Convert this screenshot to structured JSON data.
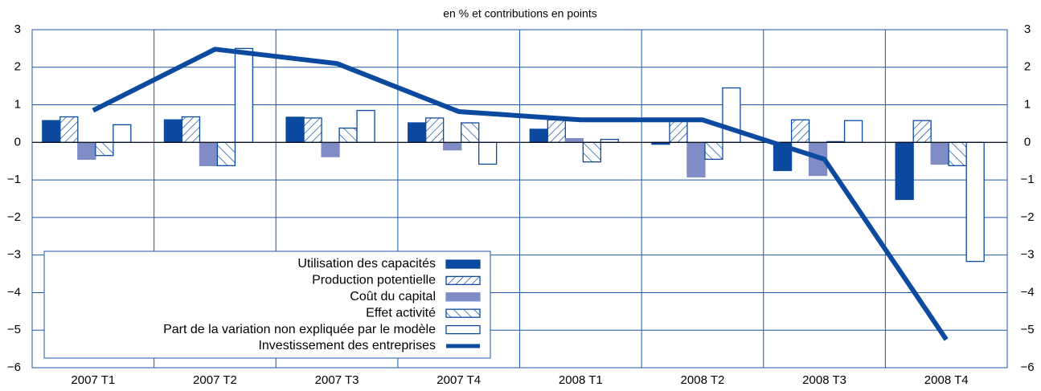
{
  "chart_data": {
    "type": "bar",
    "title": "en % et contributions en points",
    "categories": [
      "2007 T1",
      "2007 T2",
      "2007 T3",
      "2007 T4",
      "2008 T1",
      "2008 T2",
      "2008 T3",
      "2008 T4"
    ],
    "ylim": [
      -6,
      3
    ],
    "yticks": [
      {
        "value": -6,
        "label": "−6"
      },
      {
        "value": -5,
        "label": "−5"
      },
      {
        "value": -4,
        "label": "−4"
      },
      {
        "value": -3,
        "label": "−3"
      },
      {
        "value": -2,
        "label": "−2"
      },
      {
        "value": -1,
        "label": "−1"
      },
      0,
      1,
      2,
      3
    ],
    "grid": true,
    "legend": "lower-left",
    "series": [
      {
        "name": "Utilisation des capacités",
        "color": "#0b4a9e",
        "pattern": "solid",
        "values": [
          0.58,
          0.6,
          0.67,
          0.52,
          0.35,
          -0.05,
          -0.75,
          -1.52
        ]
      },
      {
        "name": "Production potentielle",
        "color": "#0b4a9e",
        "pattern": "hatch-right",
        "values": [
          0.68,
          0.68,
          0.65,
          0.65,
          0.6,
          0.6,
          0.6,
          0.58
        ]
      },
      {
        "name": "Coût du capital",
        "color": "#7f8cc6",
        "pattern": "solid",
        "values": [
          -0.45,
          -0.62,
          -0.38,
          -0.2,
          0.1,
          -0.92,
          -0.88,
          -0.58
        ]
      },
      {
        "name": "Effet activité",
        "color": "#0b4a9e",
        "pattern": "hatch-left",
        "values": [
          -0.35,
          -0.62,
          0.38,
          0.52,
          -0.52,
          -0.45,
          0.02,
          -0.62
        ]
      },
      {
        "name": "Part de la variation non expliquée par le modèle",
        "color": "#0b4a9e",
        "pattern": "outline",
        "values": [
          0.47,
          2.5,
          0.85,
          -0.58,
          0.08,
          1.45,
          0.58,
          -3.17
        ]
      },
      {
        "name": "Investissement des entreprises",
        "color": "#0b4a9e",
        "type": "line",
        "values": [
          0.85,
          2.48,
          2.1,
          0.82,
          0.6,
          0.6,
          -0.45,
          -5.25
        ]
      }
    ]
  }
}
